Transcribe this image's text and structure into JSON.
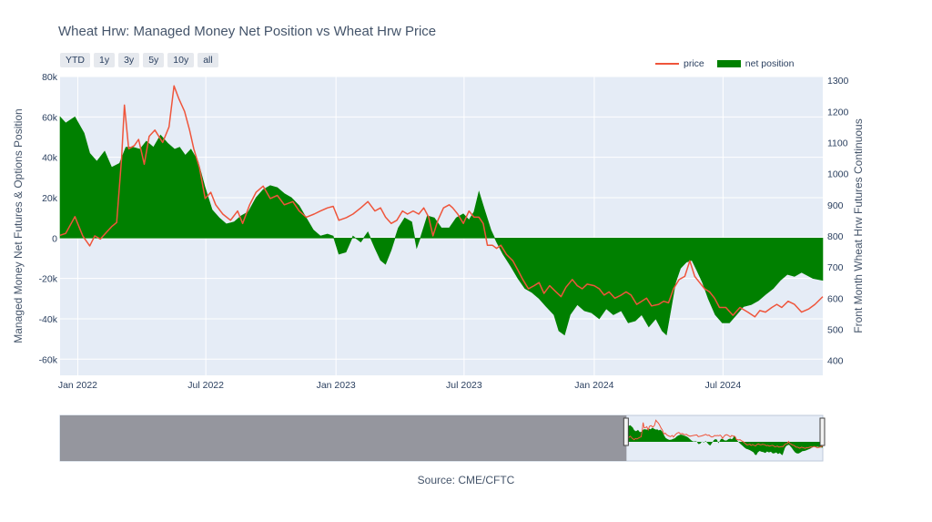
{
  "title": "Wheat Hrw: Managed Money Net Position vs Wheat Hrw Price",
  "source": "Source: CME/CFTC",
  "range_buttons": [
    "YTD",
    "1y",
    "3y",
    "5y",
    "10y",
    "all"
  ],
  "colors": {
    "plot_bg": "#e5ecf6",
    "grid": "#ffffff",
    "net_position": "#008000",
    "price": "#ef553b",
    "axis_text": "#2a3f5f",
    "range_shade": "#7a7a80"
  },
  "chart_data": {
    "type": "area",
    "title": "Wheat Hrw: Managed Money Net Position vs Wheat Hrw Price",
    "ylabel": "Managed Money Net Futures & Options Position",
    "y2label": "Front Month Wheat Hrw Futures Continuous",
    "xlim": [
      "2021-12-07",
      "2024-11-19"
    ],
    "ylim": [
      -68000,
      80000
    ],
    "y2lim": [
      352,
      1312
    ],
    "xticks": [
      {
        "date": "2022-01-01",
        "label": "Jan 2022"
      },
      {
        "date": "2022-07-01",
        "label": "Jul 2022"
      },
      {
        "date": "2023-01-01",
        "label": "Jan 2023"
      },
      {
        "date": "2023-07-01",
        "label": "Jul 2023"
      },
      {
        "date": "2024-01-01",
        "label": "Jan 2024"
      },
      {
        "date": "2024-07-01",
        "label": "Jul 2024"
      }
    ],
    "yticks": [
      {
        "value": -60000,
        "label": "-60k"
      },
      {
        "value": -40000,
        "label": "-40k"
      },
      {
        "value": -20000,
        "label": "-20k"
      },
      {
        "value": 0,
        "label": "0"
      },
      {
        "value": 20000,
        "label": "20k"
      },
      {
        "value": 40000,
        "label": "40k"
      },
      {
        "value": 60000,
        "label": "60k"
      },
      {
        "value": 80000,
        "label": "80k"
      }
    ],
    "y2ticks": [
      {
        "value": 400,
        "label": "400"
      },
      {
        "value": 500,
        "label": "500"
      },
      {
        "value": 600,
        "label": "600"
      },
      {
        "value": 700,
        "label": "700"
      },
      {
        "value": 800,
        "label": "800"
      },
      {
        "value": 900,
        "label": "900"
      },
      {
        "value": 1000,
        "label": "1000"
      },
      {
        "value": 1100,
        "label": "1100"
      },
      {
        "value": 1200,
        "label": "1200"
      },
      {
        "value": 1300,
        "label": "1300"
      }
    ],
    "legend_position": "top-right",
    "grid": true,
    "series": [
      {
        "name": "net position",
        "type": "area",
        "axis": "left",
        "points": [
          [
            "2021-12-07",
            60000
          ],
          [
            "2021-12-15",
            57000
          ],
          [
            "2021-12-28",
            60000
          ],
          [
            "2022-01-10",
            52000
          ],
          [
            "2022-01-18",
            42000
          ],
          [
            "2022-01-28",
            38000
          ],
          [
            "2022-02-08",
            43000
          ],
          [
            "2022-02-18",
            35000
          ],
          [
            "2022-03-01",
            37000
          ],
          [
            "2022-03-10",
            45000
          ],
          [
            "2022-03-20",
            45000
          ],
          [
            "2022-03-30",
            44000
          ],
          [
            "2022-04-08",
            48000
          ],
          [
            "2022-04-18",
            45000
          ],
          [
            "2022-04-28",
            51000
          ],
          [
            "2022-05-08",
            47000
          ],
          [
            "2022-05-18",
            44000
          ],
          [
            "2022-05-25",
            45000
          ],
          [
            "2022-06-02",
            41000
          ],
          [
            "2022-06-10",
            44000
          ],
          [
            "2022-06-20",
            38000
          ],
          [
            "2022-06-30",
            25000
          ],
          [
            "2022-07-10",
            14000
          ],
          [
            "2022-07-20",
            10000
          ],
          [
            "2022-07-30",
            7000
          ],
          [
            "2022-08-10",
            8000
          ],
          [
            "2022-08-20",
            11000
          ],
          [
            "2022-08-30",
            13000
          ],
          [
            "2022-09-10",
            20000
          ],
          [
            "2022-09-20",
            24000
          ],
          [
            "2022-09-30",
            26000
          ],
          [
            "2022-10-10",
            25000
          ],
          [
            "2022-10-20",
            22000
          ],
          [
            "2022-10-30",
            20000
          ],
          [
            "2022-11-10",
            16000
          ],
          [
            "2022-11-20",
            10000
          ],
          [
            "2022-11-30",
            4000
          ],
          [
            "2022-12-10",
            1000
          ],
          [
            "2022-12-20",
            2000
          ],
          [
            "2022-12-28",
            1000
          ],
          [
            "2023-01-05",
            -8000
          ],
          [
            "2023-01-15",
            -7000
          ],
          [
            "2023-01-25",
            1000
          ],
          [
            "2023-02-05",
            -2000
          ],
          [
            "2023-02-15",
            3000
          ],
          [
            "2023-02-25",
            -5000
          ],
          [
            "2023-03-05",
            -11000
          ],
          [
            "2023-03-12",
            -13000
          ],
          [
            "2023-03-20",
            -6000
          ],
          [
            "2023-03-30",
            5000
          ],
          [
            "2023-04-08",
            10000
          ],
          [
            "2023-04-18",
            8000
          ],
          [
            "2023-04-25",
            -5000
          ],
          [
            "2023-05-01",
            1000
          ],
          [
            "2023-05-10",
            11000
          ],
          [
            "2023-05-20",
            10000
          ],
          [
            "2023-05-30",
            5000
          ],
          [
            "2023-06-10",
            5000
          ],
          [
            "2023-06-20",
            10000
          ],
          [
            "2023-06-30",
            12000
          ],
          [
            "2023-07-08",
            9000
          ],
          [
            "2023-07-15",
            13000
          ],
          [
            "2023-07-22",
            23000
          ],
          [
            "2023-07-30",
            14000
          ],
          [
            "2023-08-08",
            4000
          ],
          [
            "2023-08-16",
            -2000
          ],
          [
            "2023-08-25",
            -8000
          ],
          [
            "2023-09-05",
            -14000
          ],
          [
            "2023-09-15",
            -20000
          ],
          [
            "2023-09-25",
            -25000
          ],
          [
            "2023-10-05",
            -27000
          ],
          [
            "2023-10-15",
            -30000
          ],
          [
            "2023-10-25",
            -34000
          ],
          [
            "2023-11-05",
            -38000
          ],
          [
            "2023-11-12",
            -46000
          ],
          [
            "2023-11-20",
            -48000
          ],
          [
            "2023-11-28",
            -38000
          ],
          [
            "2023-12-08",
            -33000
          ],
          [
            "2023-12-18",
            -36000
          ],
          [
            "2023-12-28",
            -37000
          ],
          [
            "2024-01-08",
            -40000
          ],
          [
            "2024-01-18",
            -35000
          ],
          [
            "2024-01-28",
            -38000
          ],
          [
            "2024-02-08",
            -36000
          ],
          [
            "2024-02-18",
            -42000
          ],
          [
            "2024-02-28",
            -41000
          ],
          [
            "2024-03-08",
            -38000
          ],
          [
            "2024-03-18",
            -44000
          ],
          [
            "2024-03-28",
            -40000
          ],
          [
            "2024-04-06",
            -46000
          ],
          [
            "2024-04-12",
            -48000
          ],
          [
            "2024-04-18",
            -36000
          ],
          [
            "2024-04-25",
            -22000
          ],
          [
            "2024-05-02",
            -15000
          ],
          [
            "2024-05-10",
            -12000
          ],
          [
            "2024-05-18",
            -11000
          ],
          [
            "2024-05-25",
            -16000
          ],
          [
            "2024-06-02",
            -22000
          ],
          [
            "2024-06-10",
            -30000
          ],
          [
            "2024-06-20",
            -38000
          ],
          [
            "2024-06-30",
            -42000
          ],
          [
            "2024-07-10",
            -42000
          ],
          [
            "2024-07-20",
            -38000
          ],
          [
            "2024-07-30",
            -34000
          ],
          [
            "2024-08-10",
            -33000
          ],
          [
            "2024-08-20",
            -31000
          ],
          [
            "2024-08-30",
            -28000
          ],
          [
            "2024-09-10",
            -25000
          ],
          [
            "2024-09-20",
            -21000
          ],
          [
            "2024-09-30",
            -18000
          ],
          [
            "2024-10-10",
            -19000
          ],
          [
            "2024-10-20",
            -17000
          ],
          [
            "2024-11-05",
            -20000
          ],
          [
            "2024-11-19",
            -21000
          ]
        ]
      },
      {
        "name": "price",
        "type": "line",
        "axis": "right",
        "points": [
          [
            "2021-12-07",
            802
          ],
          [
            "2021-12-15",
            808
          ],
          [
            "2021-12-28",
            862
          ],
          [
            "2022-01-08",
            800
          ],
          [
            "2022-01-18",
            768
          ],
          [
            "2022-01-25",
            800
          ],
          [
            "2022-02-02",
            790
          ],
          [
            "2022-02-10",
            810
          ],
          [
            "2022-02-18",
            830
          ],
          [
            "2022-02-25",
            843
          ],
          [
            "2022-03-04",
            1050
          ],
          [
            "2022-03-08",
            1220
          ],
          [
            "2022-03-14",
            1080
          ],
          [
            "2022-03-22",
            1090
          ],
          [
            "2022-03-28",
            1110
          ],
          [
            "2022-04-05",
            1030
          ],
          [
            "2022-04-12",
            1120
          ],
          [
            "2022-04-20",
            1140
          ],
          [
            "2022-05-01",
            1100
          ],
          [
            "2022-05-10",
            1150
          ],
          [
            "2022-05-17",
            1282
          ],
          [
            "2022-05-24",
            1240
          ],
          [
            "2022-06-01",
            1200
          ],
          [
            "2022-06-08",
            1140
          ],
          [
            "2022-06-14",
            1080
          ],
          [
            "2022-06-22",
            1020
          ],
          [
            "2022-06-30",
            920
          ],
          [
            "2022-07-08",
            940
          ],
          [
            "2022-07-15",
            900
          ],
          [
            "2022-07-25",
            870
          ],
          [
            "2022-08-05",
            850
          ],
          [
            "2022-08-15",
            880
          ],
          [
            "2022-08-22",
            840
          ],
          [
            "2022-09-01",
            900
          ],
          [
            "2022-09-10",
            940
          ],
          [
            "2022-09-20",
            960
          ],
          [
            "2022-09-30",
            920
          ],
          [
            "2022-10-10",
            930
          ],
          [
            "2022-10-20",
            900
          ],
          [
            "2022-11-01",
            910
          ],
          [
            "2022-11-10",
            880
          ],
          [
            "2022-11-20",
            860
          ],
          [
            "2022-12-01",
            870
          ],
          [
            "2022-12-10",
            880
          ],
          [
            "2022-12-20",
            890
          ],
          [
            "2022-12-28",
            895
          ],
          [
            "2023-01-05",
            850
          ],
          [
            "2023-01-15",
            858
          ],
          [
            "2023-01-25",
            870
          ],
          [
            "2023-02-05",
            890
          ],
          [
            "2023-02-15",
            910
          ],
          [
            "2023-02-25",
            880
          ],
          [
            "2023-03-05",
            890
          ],
          [
            "2023-03-12",
            860
          ],
          [
            "2023-03-20",
            840
          ],
          [
            "2023-03-28",
            850
          ],
          [
            "2023-04-05",
            880
          ],
          [
            "2023-04-12",
            870
          ],
          [
            "2023-04-20",
            880
          ],
          [
            "2023-04-28",
            870
          ],
          [
            "2023-05-05",
            890
          ],
          [
            "2023-05-12",
            860
          ],
          [
            "2023-05-18",
            800
          ],
          [
            "2023-05-25",
            850
          ],
          [
            "2023-06-02",
            890
          ],
          [
            "2023-06-10",
            900
          ],
          [
            "2023-06-15",
            890
          ],
          [
            "2023-06-22",
            870
          ],
          [
            "2023-06-30",
            840
          ],
          [
            "2023-07-08",
            880
          ],
          [
            "2023-07-15",
            860
          ],
          [
            "2023-07-22",
            860
          ],
          [
            "2023-07-28",
            840
          ],
          [
            "2023-08-03",
            770
          ],
          [
            "2023-08-10",
            770
          ],
          [
            "2023-08-16",
            760
          ],
          [
            "2023-08-22",
            770
          ],
          [
            "2023-08-30",
            740
          ],
          [
            "2023-09-08",
            720
          ],
          [
            "2023-09-15",
            690
          ],
          [
            "2023-09-22",
            660
          ],
          [
            "2023-09-30",
            630
          ],
          [
            "2023-10-08",
            640
          ],
          [
            "2023-10-15",
            650
          ],
          [
            "2023-10-22",
            615
          ],
          [
            "2023-10-30",
            640
          ],
          [
            "2023-11-08",
            620
          ],
          [
            "2023-11-15",
            605
          ],
          [
            "2023-11-22",
            635
          ],
          [
            "2023-12-01",
            660
          ],
          [
            "2023-12-08",
            640
          ],
          [
            "2023-12-15",
            630
          ],
          [
            "2023-12-22",
            645
          ],
          [
            "2024-01-01",
            640
          ],
          [
            "2024-01-08",
            630
          ],
          [
            "2024-01-15",
            610
          ],
          [
            "2024-01-22",
            620
          ],
          [
            "2024-01-30",
            600
          ],
          [
            "2024-02-08",
            610
          ],
          [
            "2024-02-15",
            620
          ],
          [
            "2024-02-22",
            610
          ],
          [
            "2024-03-01",
            580
          ],
          [
            "2024-03-08",
            590
          ],
          [
            "2024-03-15",
            600
          ],
          [
            "2024-03-22",
            575
          ],
          [
            "2024-04-01",
            580
          ],
          [
            "2024-04-08",
            590
          ],
          [
            "2024-04-15",
            585
          ],
          [
            "2024-04-22",
            630
          ],
          [
            "2024-04-30",
            660
          ],
          [
            "2024-05-08",
            670
          ],
          [
            "2024-05-15",
            720
          ],
          [
            "2024-05-22",
            670
          ],
          [
            "2024-05-29",
            650
          ],
          [
            "2024-06-05",
            630
          ],
          [
            "2024-06-12",
            620
          ],
          [
            "2024-06-19",
            600
          ],
          [
            "2024-06-26",
            570
          ],
          [
            "2024-07-05",
            570
          ],
          [
            "2024-07-15",
            545
          ],
          [
            "2024-07-25",
            570
          ],
          [
            "2024-08-05",
            555
          ],
          [
            "2024-08-15",
            540
          ],
          [
            "2024-08-22",
            560
          ],
          [
            "2024-08-30",
            555
          ],
          [
            "2024-09-08",
            570
          ],
          [
            "2024-09-15",
            580
          ],
          [
            "2024-09-22",
            570
          ],
          [
            "2024-10-01",
            590
          ],
          [
            "2024-10-10",
            580
          ],
          [
            "2024-10-20",
            555
          ],
          [
            "2024-10-30",
            565
          ],
          [
            "2024-11-08",
            580
          ],
          [
            "2024-11-19",
            605
          ]
        ]
      }
    ],
    "range_slider": {
      "overview_from": "2013-06-01",
      "overview_to": "2024-11-19",
      "selected_from": "2021-12-07",
      "selected_to": "2024-11-19"
    }
  }
}
